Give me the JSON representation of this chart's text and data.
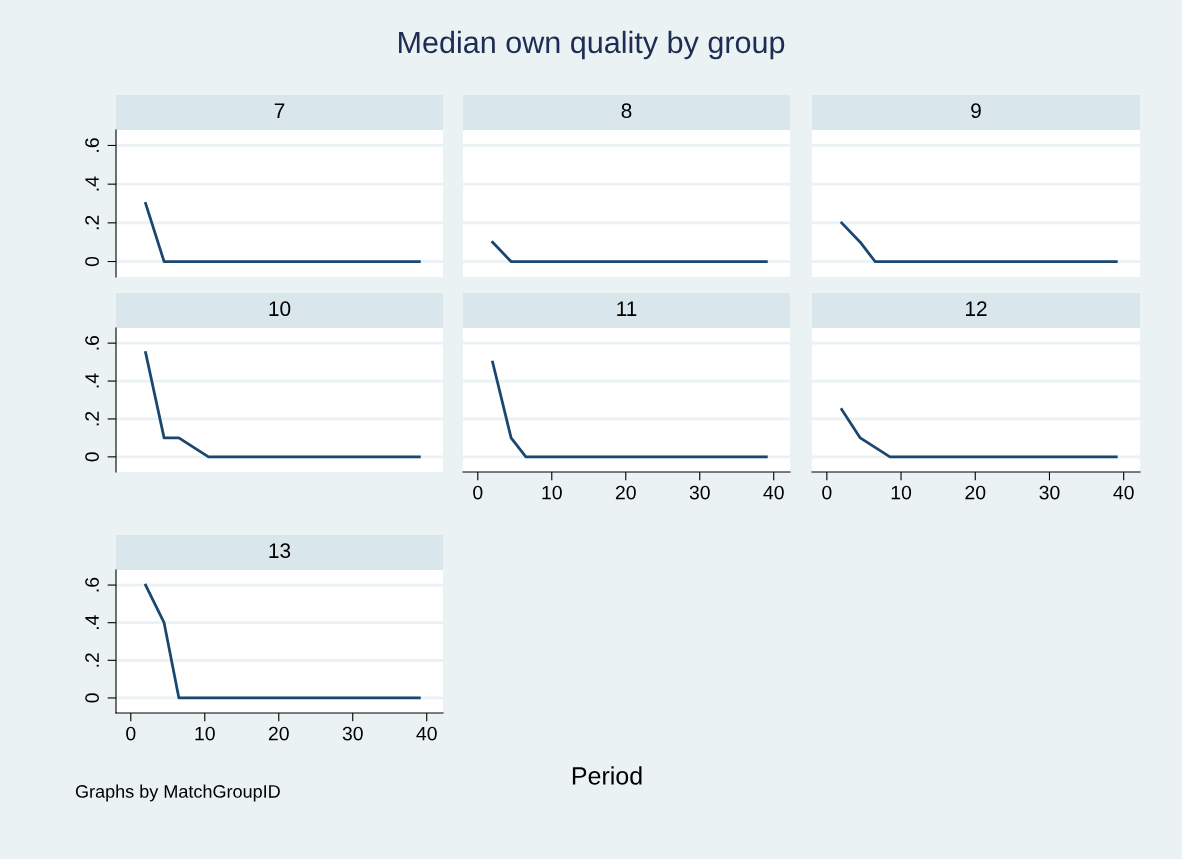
{
  "chart_data": [
    {
      "type": "other",
      "title": "Median own quality by group",
      "xlabel": "Period",
      "annotations": [
        "Graphs by MatchGroupID"
      ]
    },
    {
      "type": "line",
      "title": "7",
      "x": [
        2,
        4.5,
        39
      ],
      "series": [
        {
          "color": "#1a476f",
          "values": [
            0.3,
            0,
            0
          ]
        }
      ],
      "xlim": [
        -2,
        42.2
      ],
      "ylim": [
        -0.08,
        0.68
      ],
      "yticks": [
        {
          "value": 0,
          "label": "0"
        },
        {
          "value": 0.2,
          "label": ".2"
        },
        {
          "value": 0.4,
          "label": ".4"
        },
        {
          "value": 0.6,
          "label": ".6"
        }
      ],
      "grid": "y",
      "tick_labels": "y"
    },
    {
      "type": "line",
      "title": "8",
      "x": [
        2,
        4.5,
        39
      ],
      "series": [
        {
          "color": "#1a476f",
          "values": [
            0.1,
            0,
            0
          ]
        }
      ],
      "xlim": [
        -2,
        42.2
      ],
      "ylim": [
        -0.08,
        0.68
      ],
      "yticks": [
        0,
        0.2,
        0.4,
        0.6
      ],
      "grid": "y",
      "tick_labels": false
    },
    {
      "type": "line",
      "title": "9",
      "x": [
        2,
        4.5,
        6.5,
        39
      ],
      "series": [
        {
          "color": "#1a476f",
          "values": [
            0.2,
            0.1,
            0,
            0
          ]
        }
      ],
      "xlim": [
        -2,
        42.2
      ],
      "ylim": [
        -0.08,
        0.68
      ],
      "yticks": [
        0,
        0.2,
        0.4,
        0.6
      ],
      "grid": "y",
      "tick_labels": false
    },
    {
      "type": "line",
      "title": "10",
      "x": [
        2,
        4.5,
        6.5,
        10.5,
        39
      ],
      "series": [
        {
          "color": "#1a476f",
          "values": [
            0.55,
            0.1,
            0.1,
            0,
            0
          ]
        }
      ],
      "xlim": [
        -2,
        42.2
      ],
      "ylim": [
        -0.08,
        0.68
      ],
      "yticks": [
        {
          "value": 0,
          "label": "0"
        },
        {
          "value": 0.2,
          "label": ".2"
        },
        {
          "value": 0.4,
          "label": ".4"
        },
        {
          "value": 0.6,
          "label": ".6"
        }
      ],
      "grid": "y",
      "tick_labels": "y"
    },
    {
      "type": "line",
      "title": "11",
      "x": [
        2,
        4.5,
        6.5,
        39
      ],
      "series": [
        {
          "color": "#1a476f",
          "values": [
            0.5,
            0.1,
            0,
            0
          ]
        }
      ],
      "xlim": [
        -2,
        42.2
      ],
      "ylim": [
        -0.08,
        0.68
      ],
      "xticks": [
        0,
        10,
        20,
        30,
        40
      ],
      "yticks": [
        0,
        0.2,
        0.4,
        0.6
      ],
      "grid": "y",
      "tick_labels": "x"
    },
    {
      "type": "line",
      "title": "12",
      "x": [
        2,
        4.5,
        8.5,
        39
      ],
      "series": [
        {
          "color": "#1a476f",
          "values": [
            0.25,
            0.1,
            0,
            0
          ]
        }
      ],
      "xlim": [
        -2,
        42.2
      ],
      "ylim": [
        -0.08,
        0.68
      ],
      "xticks": [
        0,
        10,
        20,
        30,
        40
      ],
      "yticks": [
        0,
        0.2,
        0.4,
        0.6
      ],
      "grid": "y",
      "tick_labels": "x"
    },
    {
      "type": "line",
      "title": "13",
      "x": [
        2,
        4.5,
        6.5,
        39
      ],
      "series": [
        {
          "color": "#1a476f",
          "values": [
            0.6,
            0.4,
            0,
            0
          ]
        }
      ],
      "xlim": [
        -2,
        42.2
      ],
      "ylim": [
        -0.08,
        0.68
      ],
      "xticks": [
        0,
        10,
        20,
        30,
        40
      ],
      "yticks": [
        {
          "value": 0,
          "label": "0"
        },
        {
          "value": 0.2,
          "label": ".2"
        },
        {
          "value": 0.4,
          "label": ".4"
        },
        {
          "value": 0.6,
          "label": ".6"
        }
      ],
      "grid": "y"
    }
  ]
}
